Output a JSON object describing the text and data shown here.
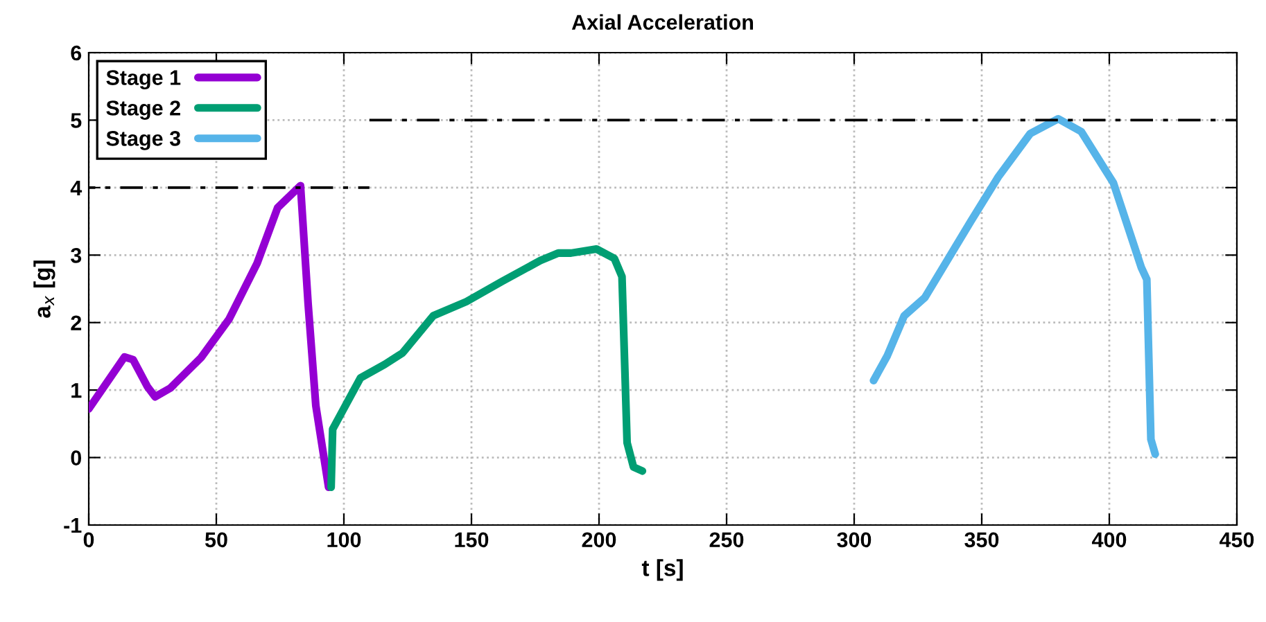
{
  "chart_data": {
    "type": "line",
    "title": "Axial Acceleration",
    "xlabel": "t [s]",
    "ylabel": "a$_{x}$ [g]",
    "xlim": [
      0,
      450
    ],
    "ylim": [
      -1,
      6
    ],
    "xticks": [
      0,
      50,
      100,
      150,
      200,
      250,
      300,
      350,
      400,
      450
    ],
    "yticks": [
      -1,
      0,
      1,
      2,
      3,
      4,
      5,
      6
    ],
    "grid": true,
    "legend": "top left",
    "marker": "none",
    "line_style": "solid",
    "series": [
      {
        "name": "Stage 1",
        "color": "#9400d3",
        "x": [
          0,
          14,
          17.4,
          23,
          26,
          32,
          44,
          55,
          66,
          74,
          83,
          86,
          89,
          94
        ],
        "values": [
          0.72,
          1.49,
          1.45,
          1.05,
          0.9,
          1.03,
          1.48,
          2.05,
          2.88,
          3.7,
          4.03,
          2.27,
          0.77,
          -0.44
        ]
      },
      {
        "name": "Stage 2",
        "color": "#009e73",
        "x": [
          95,
          95.6,
          106.5,
          116,
          123,
          135,
          148,
          162,
          177,
          184,
          189,
          199,
          206,
          209,
          211,
          213.5,
          217
        ],
        "values": [
          -0.44,
          0.42,
          1.18,
          1.38,
          1.55,
          2.1,
          2.31,
          2.61,
          2.92,
          3.03,
          3.03,
          3.09,
          2.95,
          2.68,
          0.22,
          -0.14,
          -0.2
        ]
      },
      {
        "name": "Stage 3",
        "color": "#56b4e9",
        "x": [
          307.6,
          313,
          319.6,
          327.7,
          345.7,
          356.5,
          369,
          380,
          389,
          401.6,
          412.5,
          414.7,
          416.3,
          418
        ],
        "values": [
          1.14,
          1.51,
          2.1,
          2.37,
          3.5,
          4.16,
          4.8,
          5.02,
          4.83,
          4.07,
          2.82,
          2.64,
          0.27,
          0.05
        ]
      },
      {
        "color": "#000000",
        "line_style": "dashed",
        "x": [
          0,
          110
        ],
        "values": [
          4,
          4
        ]
      },
      {
        "color": "#000000",
        "line_style": "dashed",
        "x": [
          110,
          450
        ],
        "values": [
          5,
          5
        ]
      }
    ]
  }
}
